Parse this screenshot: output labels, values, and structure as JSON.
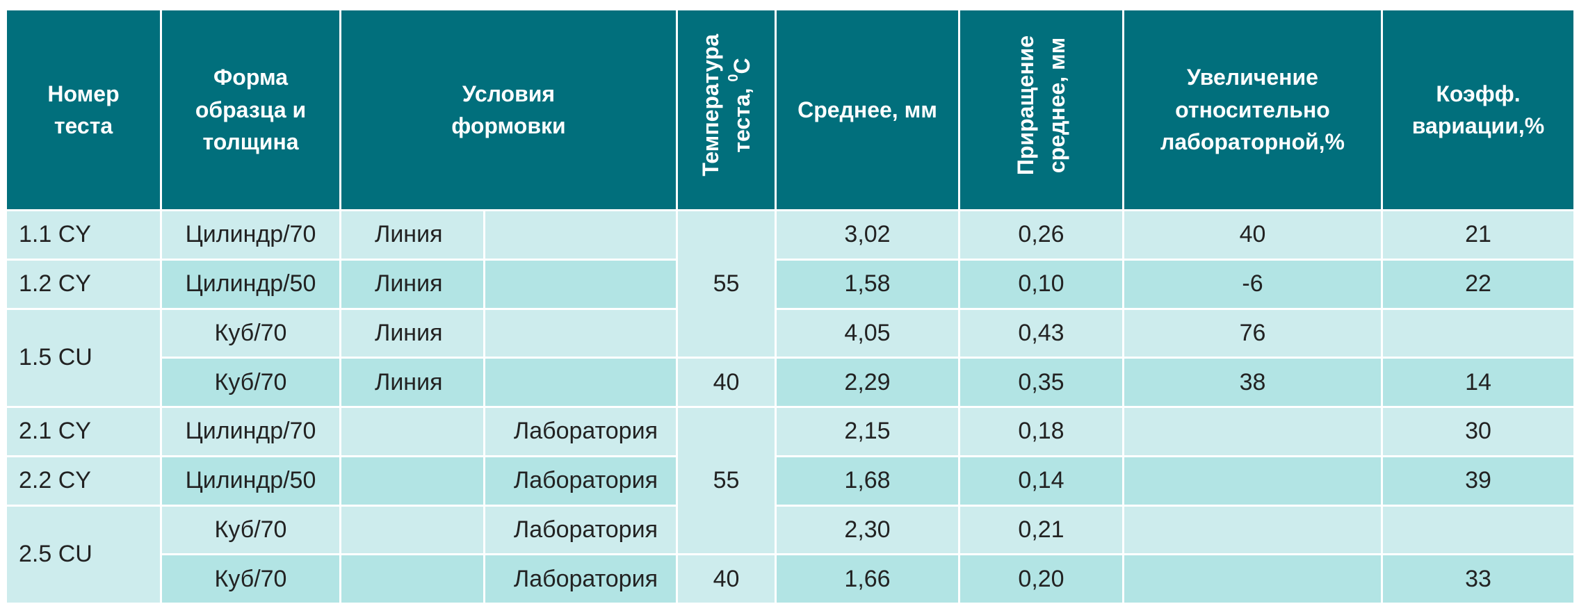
{
  "header": {
    "test_number": [
      "Номер",
      "теста"
    ],
    "shape": [
      "Форма",
      "образца и",
      "толщина"
    ],
    "conditions": [
      "Условия",
      "формовки"
    ],
    "temperature": [
      "Температура",
      "теста,"
    ],
    "temperature_unit_sup": "0",
    "temperature_unit": "C",
    "mean": "Среднее, мм",
    "increment": [
      "Приращение",
      "среднее, мм"
    ],
    "increase": [
      "Увеличение",
      "относительно",
      "лабораторной,%"
    ],
    "coef": [
      "Коэфф.",
      "вариации,%"
    ]
  },
  "groups": {
    "g1": "1.1 CY",
    "g2": "1.2 CY",
    "g3": "1.5 CU",
    "g4": "2.1 CY",
    "g5": "2.2 CY",
    "g6": "2.5 CU"
  },
  "temps": {
    "t1": "55",
    "t2": "40",
    "t3": "55",
    "t4": "40"
  },
  "rows": [
    {
      "shape": "Цилиндр/70",
      "line": "Линия",
      "lab": "",
      "mean": "3,02",
      "inc": "0,26",
      "rel": "40",
      "cv": "21"
    },
    {
      "shape": "Цилиндр/50",
      "line": "Линия",
      "lab": "",
      "mean": "1,58",
      "inc": "0,10",
      "rel": "-6",
      "cv": "22"
    },
    {
      "shape": "Куб/70",
      "line": "Линия",
      "lab": "",
      "mean": "4,05",
      "inc": "0,43",
      "rel": "76",
      "cv": ""
    },
    {
      "shape": "Куб/70",
      "line": "Линия",
      "lab": "",
      "mean": "2,29",
      "inc": "0,35",
      "rel": "38",
      "cv": "14"
    },
    {
      "shape": "Цилиндр/70",
      "line": "",
      "lab": "Лаборатория",
      "mean": "2,15",
      "inc": "0,18",
      "rel": "",
      "cv": "30"
    },
    {
      "shape": "Цилиндр/50",
      "line": "",
      "lab": "Лаборатория",
      "mean": "1,68",
      "inc": "0,14",
      "rel": "",
      "cv": "39"
    },
    {
      "shape": "Куб/70",
      "line": "",
      "lab": "Лаборатория",
      "mean": "2,30",
      "inc": "0,21",
      "rel": "",
      "cv": ""
    },
    {
      "shape": "Куб/70",
      "line": "",
      "lab": "Лаборатория",
      "mean": "1,66",
      "inc": "0,20",
      "rel": "",
      "cv": "33"
    }
  ],
  "colors": {
    "header_bg": "#016f7c",
    "row_light": "#cdeced",
    "row_dark": "#b2e4e4"
  }
}
